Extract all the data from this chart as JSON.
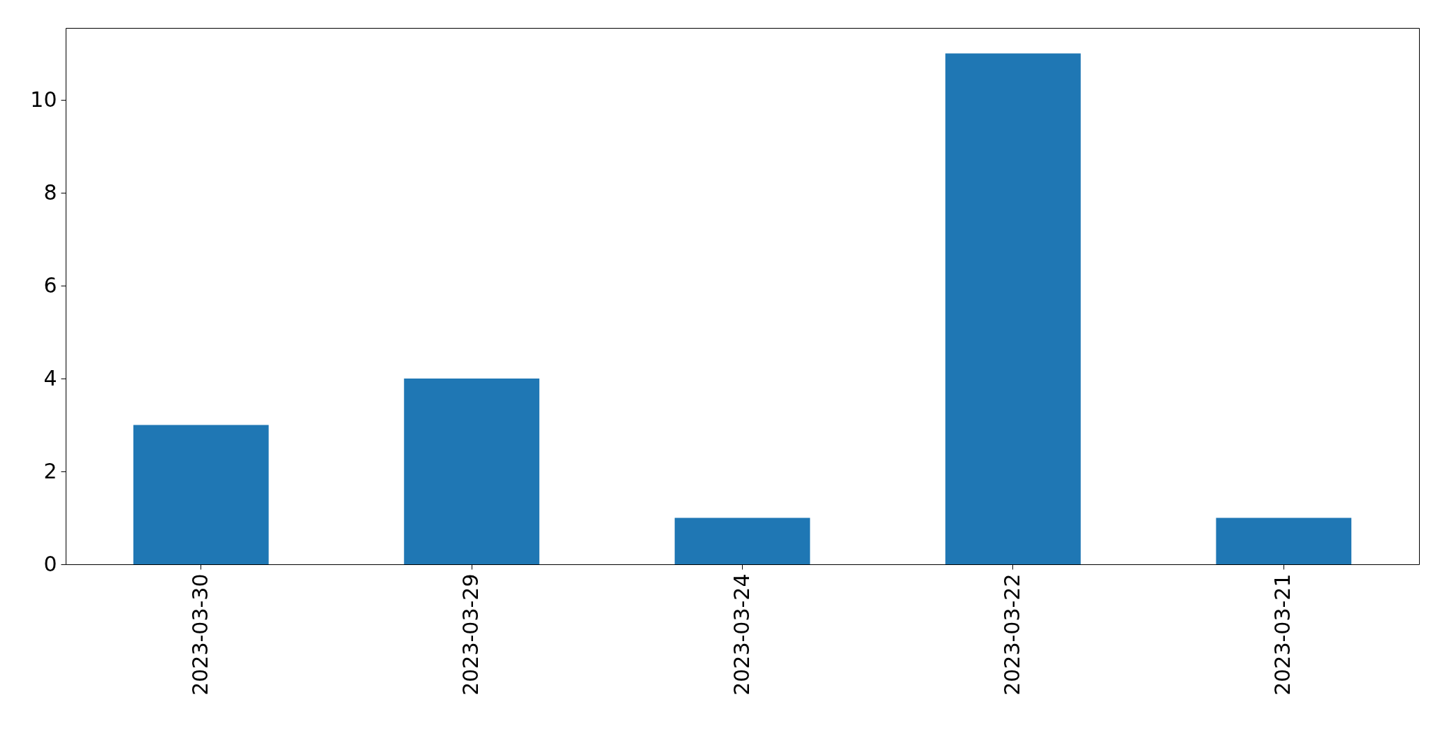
{
  "chart_data": {
    "type": "bar",
    "categories": [
      "2023-03-30",
      "2023-03-29",
      "2023-03-24",
      "2023-03-22",
      "2023-03-21"
    ],
    "series": [
      {
        "color": "#1f77b4",
        "values": [
          3,
          4,
          1,
          11,
          1
        ]
      }
    ],
    "ylim": [
      0,
      11.55
    ],
    "yticks": [
      0,
      2,
      4,
      6,
      8,
      10
    ],
    "grid": false,
    "legend": false
  }
}
